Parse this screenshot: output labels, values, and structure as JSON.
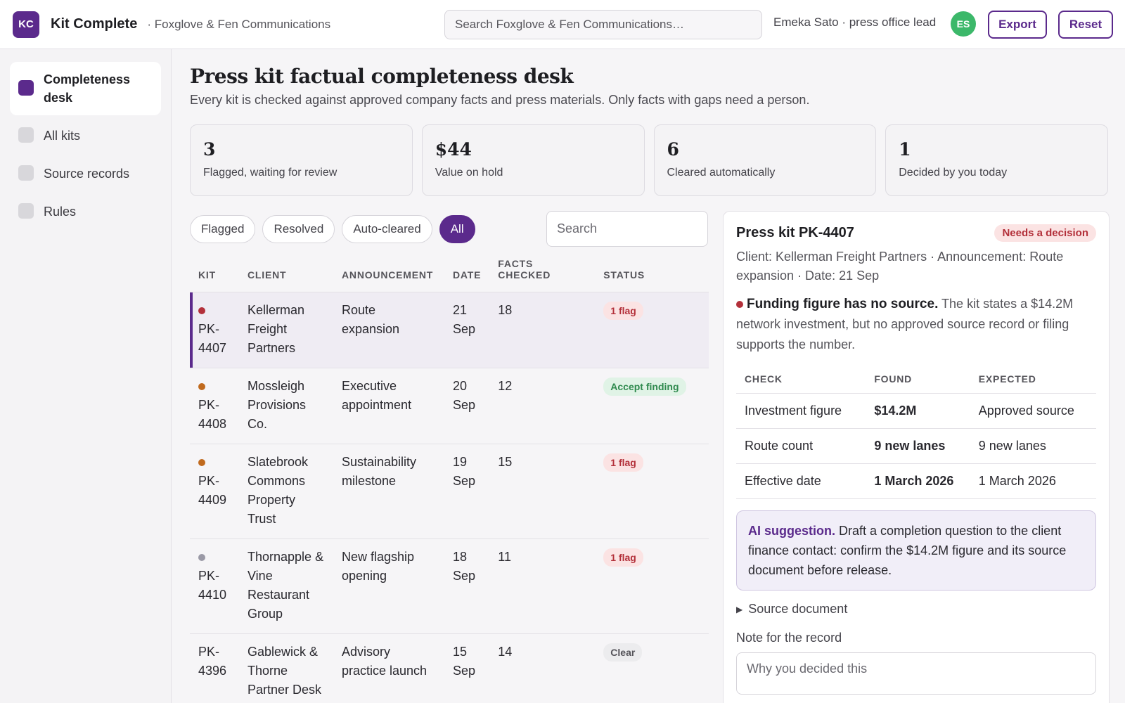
{
  "header": {
    "logo_initials": "KC",
    "app_title": "Kit Complete",
    "org": "· Foxglove & Fen Communications",
    "search_placeholder": "Search Foxglove & Fen Communications…",
    "user_label": "Emeka Sato · press office lead",
    "avatar_initials": "ES",
    "export_label": "Export",
    "reset_label": "Reset"
  },
  "sidebar": {
    "items": [
      {
        "label": "Completeness desk",
        "active": true
      },
      {
        "label": "All kits",
        "active": false
      },
      {
        "label": "Source records",
        "active": false
      },
      {
        "label": "Rules",
        "active": false
      }
    ]
  },
  "page": {
    "title": "Press kit factual completeness desk",
    "subtitle": "Every kit is checked against approved company facts and press materials. Only facts with gaps need a person."
  },
  "stats": [
    {
      "value": "3",
      "label": "Flagged, waiting for review"
    },
    {
      "value": "$44",
      "label": "Value on hold"
    },
    {
      "value": "6",
      "label": "Cleared automatically"
    },
    {
      "value": "1",
      "label": "Decided by you today"
    }
  ],
  "filters": {
    "chips": [
      "Flagged",
      "Resolved",
      "Auto-cleared",
      "All"
    ],
    "active": "All",
    "search_placeholder": "Search"
  },
  "table": {
    "headers": [
      "KIT",
      "CLIENT",
      "ANNOUNCEMENT",
      "DATE",
      "FACTS CHECKED",
      "STATUS"
    ],
    "rows": [
      {
        "kit": "PK-4407",
        "client": "Kellerman Freight Partners",
        "announcement": "Route expansion",
        "date": "21 Sep",
        "facts": "18",
        "status": "1 flag",
        "status_type": "flag",
        "dot_color": "#b3303a",
        "selected": true
      },
      {
        "kit": "PK-4408",
        "client": "Mossleigh Provisions Co.",
        "announcement": "Executive appointment",
        "date": "20 Sep",
        "facts": "12",
        "status": "Accept finding",
        "status_type": "accept",
        "dot_color": "#c06a1e",
        "selected": false
      },
      {
        "kit": "PK-4409",
        "client": "Slatebrook Commons Property Trust",
        "announcement": "Sustainability milestone",
        "date": "19 Sep",
        "facts": "15",
        "status": "1 flag",
        "status_type": "flag",
        "dot_color": "#c06a1e",
        "selected": false
      },
      {
        "kit": "PK-4410",
        "client": "Thornapple & Vine Restaurant Group",
        "announcement": "New flagship opening",
        "date": "18 Sep",
        "facts": "11",
        "status": "1 flag",
        "status_type": "flag",
        "dot_color": "#9a99a6",
        "selected": false
      },
      {
        "kit": "PK-4396",
        "client": "Gablewick & Thorne Partner Desk",
        "announcement": "Advisory practice launch",
        "date": "15 Sep",
        "facts": "14",
        "status": "Clear",
        "status_type": "clear",
        "dot_color": "",
        "selected": false
      }
    ]
  },
  "detail": {
    "title": "Press kit PK-4407",
    "badge": "Needs a decision",
    "meta": "Client: Kellerman Freight Partners · Announcement: Route expansion · Date: 21 Sep",
    "finding_title": "Funding figure has no source.",
    "finding_text": "The kit states a $14.2M network investment, but no approved source record or filing supports the number.",
    "check_headers": [
      "CHECK",
      "FOUND",
      "EXPECTED"
    ],
    "checks": [
      {
        "check": "Investment figure",
        "found": "$14.2M",
        "expected": "Approved source",
        "ok": false
      },
      {
        "check": "Route count",
        "found": "9 new lanes",
        "expected": "9 new lanes",
        "ok": true
      },
      {
        "check": "Effective date",
        "found": "1 March 2026",
        "expected": "1 March 2026",
        "ok": true
      }
    ],
    "ai_label": "AI suggestion.",
    "ai_text": "Draft a completion question to the client finance contact: confirm the $14.2M figure and its source document before release.",
    "source_toggle": "Source document",
    "note_label": "Note for the record",
    "note_placeholder": "Why you decided this"
  },
  "colors": {
    "accent": "#5b2a8c",
    "flag": "#b3303a",
    "ok": "#2f8a4e",
    "warn": "#c06a1e"
  }
}
